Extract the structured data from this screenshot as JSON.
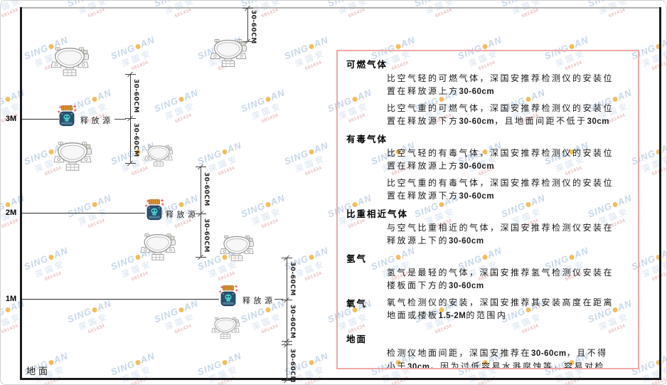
{
  "diagram": {
    "levels": [
      {
        "label": "3M"
      },
      {
        "label": "2M"
      },
      {
        "label": "1M"
      }
    ],
    "release_source_label": "释放源",
    "dim_label": "30-60CM",
    "ground_label": "地面"
  },
  "panel": {
    "sections": [
      {
        "heading": "可燃气体",
        "paragraphs": [
          [
            {
              "t": "比空气轻的可燃气体，深国安推荐检测仪的安装位置在释放源上方"
            },
            {
              "t": "30-60cm",
              "b": true
            }
          ],
          [
            {
              "t": "比空气重的可燃气体，深国安推荐检测仪的安装位置在释放源下方"
            },
            {
              "t": "30-60cm",
              "b": true
            },
            {
              "t": "，且地面间距不低于"
            },
            {
              "t": "30cm",
              "b": true
            }
          ]
        ]
      },
      {
        "heading": "有毒气体",
        "paragraphs": [
          [
            {
              "t": "比空气轻的有毒气体，深国安推荐检测仪的安装位置在释放源上方"
            },
            {
              "t": "30-60cm",
              "b": true
            }
          ],
          [
            {
              "t": "比空气重的有毒气体，深国安推荐检测仪的安装位置在释放源下方"
            },
            {
              "t": "30-60cm",
              "b": true
            }
          ]
        ]
      },
      {
        "heading": "比重相近气体",
        "paragraphs": [
          [
            {
              "t": "与空气比重相近的气体，深国安推荐检测仪安装在释放源上下的"
            },
            {
              "t": "30-60cm",
              "b": true
            }
          ]
        ]
      },
      {
        "heading": "氢气",
        "paragraphs": [
          [
            {
              "t": "氢气是最轻的气体，深国安推荐氢气检测仪安装在楼板面下方的"
            },
            {
              "t": "30-60cm",
              "b": true
            }
          ]
        ]
      },
      {
        "heading": "氧气",
        "paragraphs": [
          [
            {
              "t": "氧气检测仪的安装，深国安推荐其安装高度在距离地面或楼板"
            },
            {
              "t": "1.5-2M",
              "b": true
            },
            {
              "t": "的范围内"
            }
          ]
        ]
      },
      {
        "heading": "地面",
        "paragraphs": [
          [
            {
              "t": "检测仪地面间距，深国安推荐在"
            },
            {
              "t": "30-60cm",
              "b": true
            },
            {
              "t": "，且不得小于"
            },
            {
              "t": "30cm",
              "b": true
            },
            {
              "t": "，因为过低容易水溅腐蚀等，容易对检测仪造成伤害"
            }
          ]
        ]
      }
    ]
  },
  "watermark": {
    "en_left": "SING",
    "en_right": "AN",
    "cn": "深国安",
    "code": "681434"
  },
  "colors": {
    "panel_border": "#f2a6a6",
    "jar_lid": "#d9912f",
    "jar_body": "#2c4f6d",
    "jar_skull": "#42c9c9",
    "sparkle": "#e05050",
    "watermark_blue": "#bcd0e6",
    "watermark_dot": "#f2b33d",
    "watermark_red": "#dc8f8f"
  }
}
